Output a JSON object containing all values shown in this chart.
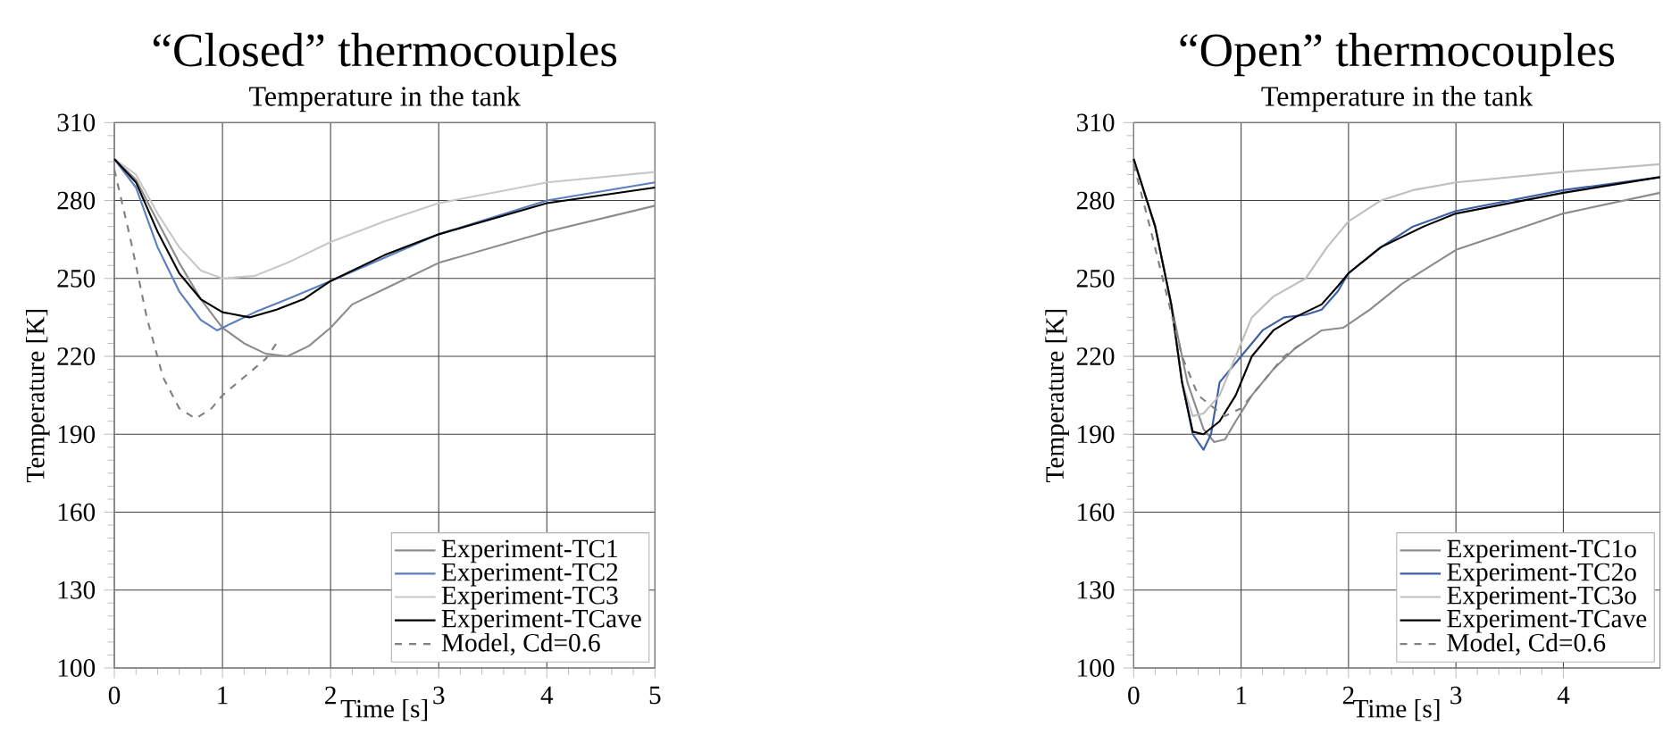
{
  "chart_data": [
    {
      "type": "line",
      "title": "“Closed” thermocouples",
      "subtitle": "Temperature in the tank",
      "xlabel": "Time [s]",
      "ylabel": "Temperature [K]",
      "xlim": [
        0,
        5
      ],
      "ylim": [
        100,
        310
      ],
      "xticks": [
        0,
        1,
        2,
        3,
        4,
        5
      ],
      "yticks": [
        100,
        130,
        160,
        190,
        220,
        250,
        280,
        310
      ],
      "grid": true,
      "legend": "bottom right",
      "series": [
        {
          "name": "Experiment-TC1",
          "color": "#8c8c8c",
          "x": [
            0,
            0.2,
            0.4,
            0.6,
            0.8,
            1.0,
            1.2,
            1.4,
            1.6,
            1.8,
            2.0,
            2.2,
            2.5,
            3,
            4,
            5
          ],
          "values": [
            296,
            288,
            272,
            256,
            242,
            231,
            225,
            221,
            220,
            224,
            231,
            240,
            246,
            256,
            268,
            278
          ]
        },
        {
          "name": "Experiment-TC2",
          "color": "#5b7fbf",
          "x": [
            0,
            0.2,
            0.4,
            0.6,
            0.8,
            0.95,
            1.1,
            1.3,
            1.6,
            2,
            2.5,
            3,
            4,
            5
          ],
          "values": [
            296,
            285,
            262,
            245,
            234,
            230,
            233,
            237,
            242,
            249,
            258,
            267,
            280,
            287
          ]
        },
        {
          "name": "Experiment-TC3",
          "color": "#c8c8c8",
          "x": [
            0,
            0.2,
            0.4,
            0.6,
            0.8,
            1.0,
            1.3,
            1.6,
            2,
            2.5,
            3,
            4,
            5
          ],
          "values": [
            296,
            290,
            275,
            262,
            253,
            250,
            251,
            256,
            264,
            272,
            279,
            287,
            291
          ]
        },
        {
          "name": "Experiment-TCave",
          "color": "#000000",
          "x": [
            0,
            0.2,
            0.4,
            0.6,
            0.8,
            1.0,
            1.25,
            1.5,
            1.75,
            2,
            2.5,
            3,
            4,
            5
          ],
          "values": [
            296,
            287,
            268,
            252,
            242,
            237,
            235,
            238,
            242,
            249,
            259,
            267,
            279,
            285
          ]
        },
        {
          "name": "Model, Cd=0.6",
          "color": "#808080",
          "line_style": "dashed",
          "x": [
            0,
            0.15,
            0.3,
            0.45,
            0.6,
            0.75,
            0.9,
            1.0,
            1.2,
            1.4,
            1.5
          ],
          "values": [
            292,
            265,
            235,
            212,
            200,
            196,
            200,
            205,
            212,
            219,
            225
          ]
        }
      ]
    },
    {
      "type": "line",
      "title": "“Open” thermocouples",
      "subtitle": "Temperature in the tank",
      "xlabel": "Time [s]",
      "ylabel": "Temperature [K]",
      "xlim": [
        0,
        4.9
      ],
      "ylim": [
        100,
        310
      ],
      "xticks": [
        0,
        1,
        2,
        3,
        4
      ],
      "yticks": [
        100,
        130,
        160,
        190,
        220,
        250,
        280,
        310
      ],
      "grid": true,
      "legend": "bottom right",
      "series": [
        {
          "name": "Experiment-TC1o",
          "color": "#8c8c8c",
          "x": [
            0,
            0.2,
            0.35,
            0.5,
            0.65,
            0.75,
            0.85,
            0.95,
            1.1,
            1.3,
            1.5,
            1.75,
            1.95,
            2.2,
            2.5,
            3,
            4,
            4.9
          ],
          "values": [
            296,
            270,
            240,
            210,
            192,
            187,
            188,
            195,
            205,
            215,
            223,
            230,
            231,
            238,
            248,
            261,
            275,
            283
          ]
        },
        {
          "name": "Experiment-TC2o",
          "color": "#3c5fa8",
          "x": [
            0,
            0.2,
            0.35,
            0.45,
            0.55,
            0.65,
            0.72,
            0.8,
            1.0,
            1.2,
            1.4,
            1.6,
            1.75,
            1.9,
            2.0,
            2.3,
            2.6,
            3,
            4,
            4.9
          ],
          "values": [
            296,
            270,
            240,
            210,
            190,
            184,
            190,
            210,
            220,
            230,
            235,
            236,
            238,
            245,
            252,
            262,
            270,
            276,
            284,
            289
          ]
        },
        {
          "name": "Experiment-TC3o",
          "color": "#bfbfbf",
          "x": [
            0,
            0.2,
            0.35,
            0.45,
            0.55,
            0.65,
            0.8,
            0.95,
            1.1,
            1.3,
            1.6,
            1.8,
            2.0,
            2.3,
            2.6,
            3,
            4,
            4.9
          ],
          "values": [
            296,
            270,
            240,
            210,
            197,
            198,
            205,
            220,
            235,
            243,
            250,
            262,
            272,
            280,
            284,
            287,
            291,
            294
          ]
        },
        {
          "name": "Experiment-TCave",
          "color": "#000000",
          "x": [
            0,
            0.2,
            0.35,
            0.45,
            0.55,
            0.65,
            0.8,
            0.95,
            1.1,
            1.3,
            1.5,
            1.75,
            1.9,
            2.0,
            2.3,
            2.7,
            3,
            4,
            4.9
          ],
          "values": [
            296,
            270,
            240,
            210,
            191,
            190,
            195,
            205,
            220,
            230,
            235,
            240,
            247,
            252,
            262,
            270,
            275,
            283,
            289
          ]
        },
        {
          "name": "Model, Cd=0.6",
          "color": "#808080",
          "line_style": "dashed",
          "x": [
            0,
            0.15,
            0.3,
            0.45,
            0.6,
            0.75,
            0.85,
            1.0,
            1.2,
            1.4,
            1.6
          ],
          "values": [
            294,
            270,
            245,
            220,
            205,
            200,
            197,
            200,
            210,
            220,
            226
          ]
        }
      ]
    }
  ]
}
